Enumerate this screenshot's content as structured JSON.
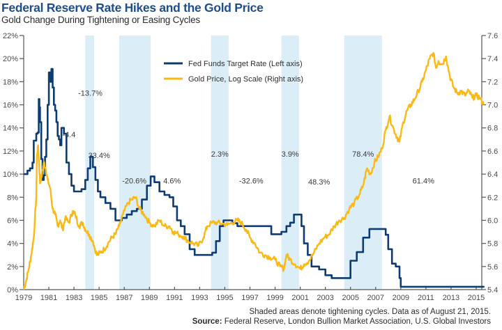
{
  "header": {
    "title": "Federal Reserve Rate Hikes and the Gold Price",
    "subtitle": "Gold Change During Tightening or Easing Cycles"
  },
  "footer": {
    "note": "Shaded areas denote tightening cycles. Data as of August 21, 2015.",
    "source_label": "Source:",
    "source_text": " Federal Reserve, London Bullion Market Association, U.S. Global Investors"
  },
  "colors": {
    "fed": "#0d3c73",
    "gold": "#fdb913",
    "shade": "#dbeef7",
    "title": "#1f4e8c"
  },
  "chart_data": {
    "type": "line",
    "title": "Federal Reserve Rate Hikes and the Gold Price",
    "subtitle": "Gold Change During Tightening or Easing Cycles",
    "xlabel": "",
    "ylabel_left": "Fed Funds Target Rate (%)",
    "ylabel_right": "Gold Price, Log Scale",
    "xlim": [
      1979,
      2015.7
    ],
    "ylim_left": [
      0,
      22
    ],
    "ylim_right": [
      5.4,
      7.6
    ],
    "grid": false,
    "legend_position": "top-center",
    "x_ticks": [
      "1979",
      "1981",
      "1983",
      "1985",
      "1987",
      "1989",
      "1991",
      "1993",
      "1995",
      "1997",
      "1999",
      "2001",
      "2003",
      "2005",
      "2007",
      "2009",
      "2011",
      "2013",
      "2015"
    ],
    "y_ticks_left": [
      "0%",
      "2%",
      "4%",
      "6%",
      "8%",
      "10%",
      "12%",
      "14%",
      "16%",
      "18%",
      "20%",
      "22%"
    ],
    "y_ticks_right": [
      "5.4",
      "5.6",
      "5.8",
      "6.0",
      "6.2",
      "6.4",
      "6.6",
      "6.8",
      "7.0",
      "7.2",
      "7.4",
      "7.6"
    ],
    "legend": [
      {
        "name": "Fed Funds Target Rate (Left axis)",
        "series": "fed"
      },
      {
        "name": "Gold Price, Log Scale (Right axis)",
        "series": "gold"
      }
    ],
    "shaded_periods": [
      {
        "start": 1983.9,
        "end": 1984.6
      },
      {
        "start": 1986.6,
        "end": 1989.1
      },
      {
        "start": 1993.9,
        "end": 1995.3
      },
      {
        "start": 1999.5,
        "end": 2000.9
      },
      {
        "start": 2004.5,
        "end": 2007.5
      }
    ],
    "annotations": [
      {
        "text": "-13.7%",
        "x": 1984.3,
        "y_pct": 16.8
      },
      {
        "text": "-4.4",
        "x": 1982.6,
        "y_pct": 13.2
      },
      {
        "text": "33.4%",
        "x": 1985.0,
        "y_pct": 11.4
      },
      {
        "text": "-20.6%",
        "x": 1987.8,
        "y_pct": 9.2
      },
      {
        "text": "4.6%",
        "x": 1990.8,
        "y_pct": 9.2
      },
      {
        "text": "2.3%",
        "x": 1994.6,
        "y_pct": 11.5
      },
      {
        "text": "-32.6%",
        "x": 1997.1,
        "y_pct": 9.2
      },
      {
        "text": "3.9%",
        "x": 2000.2,
        "y_pct": 11.5
      },
      {
        "text": "48.3%",
        "x": 2002.5,
        "y_pct": 9.1
      },
      {
        "text": "78.4%",
        "x": 2006.0,
        "y_pct": 11.5
      },
      {
        "text": "61.4%",
        "x": 2010.8,
        "y_pct": 9.2
      }
    ],
    "series": [
      {
        "name": "Fed Funds Target Rate (Left axis)",
        "key": "fed",
        "axis": "left",
        "x": [
          1979.0,
          1979.3,
          1979.5,
          1979.7,
          1979.8,
          1980.0,
          1980.1,
          1980.2,
          1980.25,
          1980.3,
          1980.4,
          1980.5,
          1980.6,
          1980.7,
          1980.8,
          1980.9,
          1981.0,
          1981.1,
          1981.2,
          1981.3,
          1981.4,
          1981.5,
          1981.6,
          1981.7,
          1981.8,
          1981.9,
          1982.0,
          1982.2,
          1982.4,
          1982.6,
          1982.8,
          1983.0,
          1983.3,
          1983.6,
          1983.9,
          1984.1,
          1984.3,
          1984.5,
          1984.7,
          1984.9,
          1985.1,
          1985.5,
          1985.9,
          1986.3,
          1986.8,
          1987.2,
          1987.6,
          1988.0,
          1988.4,
          1988.8,
          1989.1,
          1989.4,
          1989.8,
          1990.2,
          1990.6,
          1990.9,
          1991.2,
          1991.5,
          1991.8,
          1992.2,
          1992.6,
          1993.0,
          1993.5,
          1994.0,
          1994.3,
          1994.6,
          1994.9,
          1995.2,
          1995.6,
          1996.0,
          1996.5,
          1997.0,
          1997.5,
          1998.0,
          1998.7,
          1999.0,
          1999.5,
          1999.9,
          2000.2,
          2000.5,
          2000.9,
          2001.1,
          2001.3,
          2001.6,
          2001.9,
          2002.5,
          2003.0,
          2003.5,
          2004.0,
          2004.5,
          2005.0,
          2005.5,
          2006.0,
          2006.5,
          2007.0,
          2007.5,
          2007.8,
          2008.0,
          2008.3,
          2008.6,
          2008.9,
          2009.0,
          2010.0,
          2011.0,
          2012.0,
          2013.0,
          2014.0,
          2014.6,
          2015.0,
          2015.6
        ],
        "y": [
          10.0,
          10.3,
          10.5,
          11.0,
          12.9,
          13.5,
          13.6,
          16.5,
          15.8,
          14.5,
          11.3,
          9.5,
          9.9,
          11.5,
          13.0,
          16.0,
          18.8,
          18.0,
          19.1,
          17.5,
          16.0,
          15.5,
          14.5,
          13.3,
          13.0,
          12.5,
          14.0,
          13.5,
          11.0,
          10.0,
          9.0,
          8.5,
          8.5,
          8.7,
          9.5,
          10.5,
          11.5,
          10.6,
          9.5,
          8.5,
          8.0,
          7.5,
          7.0,
          6.0,
          6.2,
          6.5,
          6.8,
          7.0,
          7.8,
          9.0,
          9.8,
          9.3,
          8.5,
          8.2,
          8.0,
          7.2,
          6.0,
          5.5,
          4.8,
          3.5,
          3.0,
          3.0,
          3.0,
          3.2,
          4.2,
          5.5,
          6.0,
          6.0,
          5.75,
          5.5,
          5.5,
          5.5,
          5.5,
          5.5,
          4.8,
          4.8,
          5.0,
          5.5,
          5.8,
          6.5,
          6.5,
          5.5,
          4.0,
          3.0,
          2.0,
          1.75,
          1.25,
          1.0,
          1.0,
          1.0,
          2.5,
          3.25,
          4.5,
          5.25,
          5.25,
          5.25,
          4.75,
          3.5,
          2.25,
          2.0,
          1.0,
          0.25,
          0.25,
          0.25,
          0.25,
          0.25,
          0.25,
          0.25,
          0.25,
          0.2
        ]
      },
      {
        "name": "Gold Price, Log Scale (Right axis)",
        "key": "gold",
        "axis": "right",
        "x": [
          1979.0,
          1979.2,
          1979.4,
          1979.6,
          1979.8,
          1980.0,
          1980.05,
          1980.15,
          1980.3,
          1980.45,
          1980.6,
          1980.75,
          1980.9,
          1981.1,
          1981.3,
          1981.5,
          1981.7,
          1981.9,
          1982.1,
          1982.3,
          1982.6,
          1982.9,
          1983.1,
          1983.4,
          1983.7,
          1983.9,
          1984.2,
          1984.5,
          1984.8,
          1985.1,
          1985.4,
          1985.7,
          1986.0,
          1986.3,
          1986.6,
          1986.9,
          1987.3,
          1987.6,
          1987.9,
          1988.2,
          1988.6,
          1989.0,
          1989.4,
          1989.8,
          1990.2,
          1990.6,
          1990.9,
          1991.3,
          1991.7,
          1992.1,
          1992.5,
          1992.9,
          1993.3,
          1993.6,
          1994.0,
          1994.4,
          1994.8,
          1995.2,
          1995.6,
          1996.0,
          1996.3,
          1996.7,
          1997.0,
          1997.4,
          1997.8,
          1998.2,
          1998.6,
          1999.0,
          1999.4,
          1999.7,
          1999.9,
          2000.2,
          2000.6,
          2001.0,
          2001.3,
          2001.7,
          2002.1,
          2002.5,
          2002.9,
          2003.3,
          2003.7,
          2004.1,
          2004.5,
          2004.9,
          2005.3,
          2005.7,
          2006.0,
          2006.3,
          2006.6,
          2006.9,
          2007.2,
          2007.5,
          2007.8,
          2008.1,
          2008.4,
          2008.7,
          2008.9,
          2009.2,
          2009.5,
          2009.8,
          2010.1,
          2010.4,
          2010.7,
          2011.0,
          2011.3,
          2011.6,
          2011.8,
          2012.0,
          2012.3,
          2012.6,
          2012.9,
          2013.2,
          2013.5,
          2013.8,
          2014.1,
          2014.4,
          2014.7,
          2015.0,
          2015.3,
          2015.6
        ],
        "y": [
          5.4,
          5.48,
          5.58,
          5.7,
          5.85,
          6.2,
          6.55,
          6.65,
          6.32,
          6.4,
          6.5,
          6.45,
          6.35,
          6.28,
          6.1,
          6.05,
          5.95,
          6.0,
          5.92,
          6.02,
          5.98,
          6.08,
          6.05,
          5.95,
          5.98,
          5.92,
          5.88,
          5.82,
          5.7,
          5.72,
          5.75,
          5.8,
          5.85,
          5.88,
          5.95,
          6.05,
          6.15,
          6.18,
          6.2,
          6.1,
          6.05,
          5.98,
          5.95,
          6.0,
          5.95,
          5.95,
          5.9,
          5.88,
          5.86,
          5.82,
          5.8,
          5.78,
          5.85,
          5.95,
          5.98,
          5.98,
          5.97,
          5.96,
          5.98,
          6.0,
          5.98,
          5.92,
          5.85,
          5.8,
          5.72,
          5.7,
          5.68,
          5.66,
          5.6,
          5.58,
          5.7,
          5.66,
          5.62,
          5.58,
          5.62,
          5.65,
          5.72,
          5.8,
          5.85,
          5.88,
          5.95,
          6.0,
          6.02,
          6.1,
          6.15,
          6.22,
          6.3,
          6.45,
          6.4,
          6.5,
          6.55,
          6.62,
          6.78,
          6.9,
          6.8,
          6.72,
          6.68,
          6.85,
          6.95,
          7.0,
          7.05,
          7.12,
          7.2,
          7.3,
          7.4,
          7.45,
          7.32,
          7.38,
          7.35,
          7.42,
          7.25,
          7.15,
          7.1,
          7.12,
          7.08,
          7.12,
          7.06,
          7.08,
          7.06,
          7.0
        ]
      }
    ]
  }
}
